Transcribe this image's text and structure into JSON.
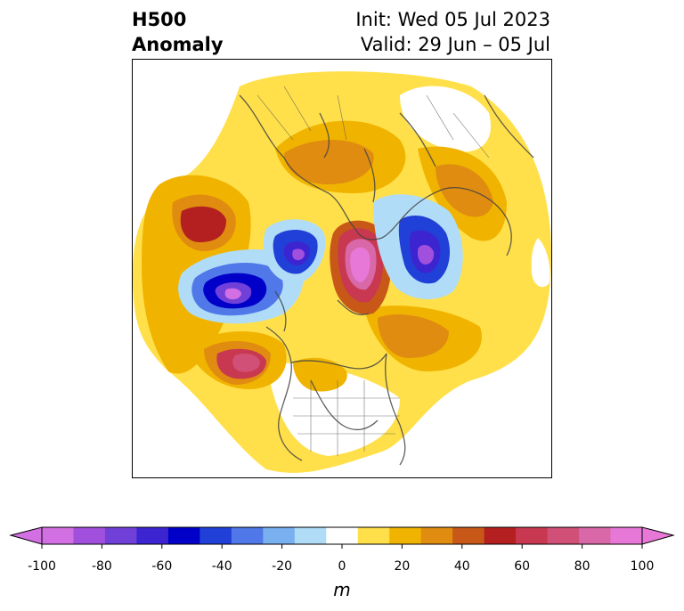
{
  "header": {
    "title_line1": "H500",
    "title_line2": "Anomaly",
    "init_text": "Init: Wed 05 Jul 2023",
    "valid_text": "Valid: 29 Jun – 05 Jul"
  },
  "colorbar": {
    "unit": "m",
    "ticks": [
      "-100",
      "-80",
      "-60",
      "-40",
      "-20",
      "0",
      "20",
      "40",
      "60",
      "80",
      "100"
    ],
    "levels": [
      -100,
      -90,
      -80,
      -70,
      -60,
      -50,
      -40,
      -30,
      -20,
      -10,
      10,
      20,
      30,
      40,
      50,
      60,
      70,
      80,
      90,
      100
    ],
    "colors": [
      "#d26fe2",
      "#a050dd",
      "#7040d8",
      "#3c24d0",
      "#0000c8",
      "#2040d8",
      "#5078e8",
      "#78b0f0",
      "#b0dcf8",
      "#ffffff",
      "#ffe04a",
      "#f0b400",
      "#e08c10",
      "#c85818",
      "#b42020",
      "#c83850",
      "#d05078",
      "#d868a8",
      "#e878d8"
    ],
    "extend_min_color": "#d26fe2",
    "extend_max_color": "#e878d8"
  },
  "map": {
    "projection": "north-polar-stereographic",
    "field": "500 hPa geopotential height anomaly"
  }
}
